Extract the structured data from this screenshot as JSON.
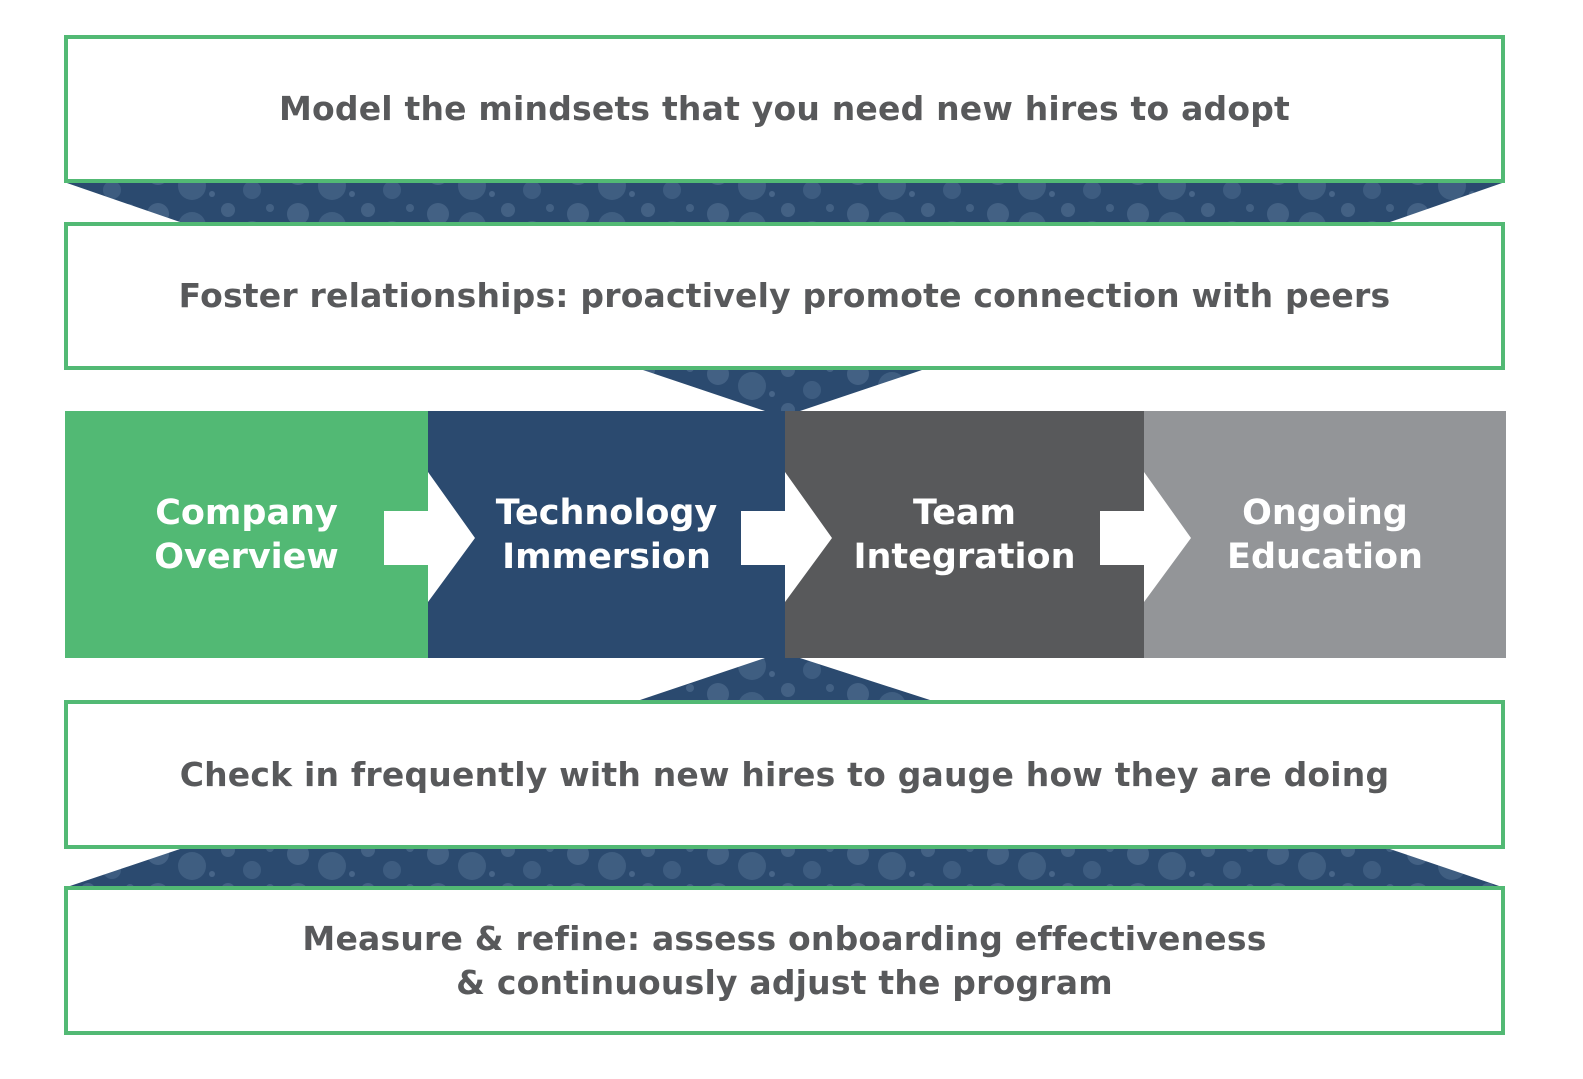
{
  "colors": {
    "green": "#52b974",
    "navy": "#2b4a6f",
    "navy_light": "#4d6b8e",
    "dark_gray": "#58595b",
    "light_gray": "#939598",
    "text_gray": "#58595b",
    "white": "#ffffff"
  },
  "top_boxes": [
    {
      "text": "Model the mindsets that you need new hires to adopt"
    },
    {
      "text": "Foster relationships: proactively promote connection with peers"
    }
  ],
  "stages": [
    {
      "label": "Company\nOverview",
      "color": "#52b974"
    },
    {
      "label": "Technology\nImmersion",
      "color": "#2b4a6f"
    },
    {
      "label": "Team\nIntegration",
      "color": "#58595b"
    },
    {
      "label": "Ongoing\nEducation",
      "color": "#939598"
    }
  ],
  "bottom_boxes": [
    {
      "text": "Check in frequently with new hires to gauge how they are doing"
    },
    {
      "text": "Measure & refine: assess onboarding effectiveness\n& continuously adjust the program"
    }
  ]
}
